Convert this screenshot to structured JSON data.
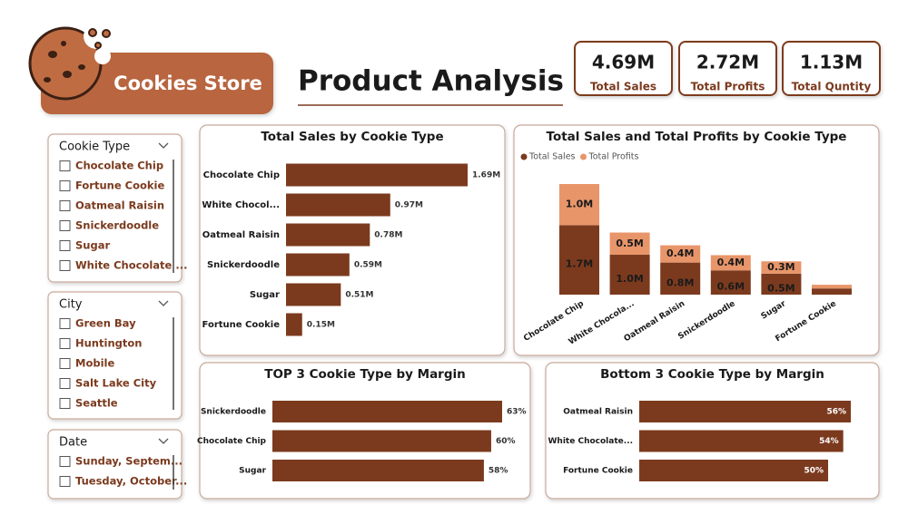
{
  "header": {
    "logo_text": "Cookies Store",
    "title": "Product Analysis"
  },
  "kpis": [
    {
      "value": "4.69M",
      "label": "Total Sales"
    },
    {
      "value": "2.72M",
      "label": "Total Profits"
    },
    {
      "value": "1.13M",
      "label": "Total Quntity"
    }
  ],
  "slicers": [
    {
      "title": "Cookie Type",
      "items": [
        "Chocolate Chip",
        "Fortune Cookie",
        "Oatmeal Raisin",
        "Snickerdoodle",
        "Sugar",
        "White Chocolate ..."
      ]
    },
    {
      "title": "City",
      "items": [
        "Green Bay",
        "Huntington",
        "Mobile",
        "Salt Lake City",
        "Seattle"
      ]
    },
    {
      "title": "Date",
      "items": [
        "Sunday, Septem...",
        "Tuesday, October..."
      ]
    }
  ],
  "chart_data": [
    {
      "type": "bar",
      "horizontal": true,
      "title": "Total Sales by Cookie Type",
      "categories": [
        "Chocolate Chip",
        "White Chocol...",
        "Oatmeal Raisin",
        "Snickerdoodle",
        "Sugar",
        "Fortune Cookie"
      ],
      "values": [
        1690000,
        970000,
        780000,
        590000,
        510000,
        150000
      ],
      "value_labels": [
        "1.69M",
        "0.97M",
        "0.78M",
        "0.59M",
        "0.51M",
        "0.15M"
      ],
      "color": "#7b3a1e"
    },
    {
      "type": "stacked_bar",
      "title": "Total Sales and Total Profits by Cookie Type",
      "categories": [
        "Chocolate Chip",
        "White Chocola...",
        "Oatmeal Raisin",
        "Snickerdoodle",
        "Sugar",
        "Fortune Cookie"
      ],
      "series": [
        {
          "name": "Total Sales",
          "color": "#7b3a1e",
          "values": [
            1690000,
            970000,
            780000,
            590000,
            510000,
            150000
          ],
          "value_labels": [
            "1.7M",
            "1.0M",
            "0.8M",
            "0.6M",
            "0.5M",
            null
          ]
        },
        {
          "name": "Total Profits",
          "color": "#e8956a",
          "values": [
            1000000,
            540000,
            420000,
            370000,
            300000,
            90000
          ],
          "value_labels": [
            "1.0M",
            "0.5M",
            "0.4M",
            "0.4M",
            "0.3M",
            null
          ]
        }
      ]
    },
    {
      "type": "bar",
      "horizontal": true,
      "title": "TOP 3 Cookie Type by Margin",
      "categories": [
        "Snickerdoodle",
        "Chocolate Chip",
        "Sugar"
      ],
      "values": [
        63,
        60,
        58
      ],
      "value_labels": [
        "63%",
        "60%",
        "58%"
      ],
      "color": "#7b3a1e"
    },
    {
      "type": "bar",
      "horizontal": true,
      "title": "Bottom 3 Cookie Type by Margin",
      "categories": [
        "Oatmeal Raisin",
        "White Chocolate...",
        "Fortune Cookie"
      ],
      "values": [
        56,
        54,
        50
      ],
      "value_labels": [
        "56%",
        "54%",
        "50%"
      ],
      "color": "#7b3a1e"
    }
  ]
}
